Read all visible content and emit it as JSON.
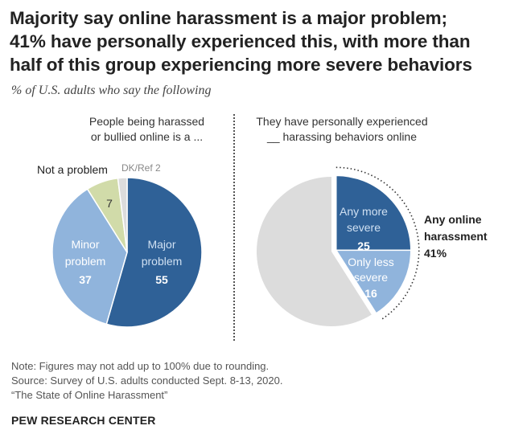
{
  "title_lines": [
    "Majority say online harassment is a major problem;",
    "41% have personally experienced this, with more than",
    "half of this group experiencing more severe behaviors"
  ],
  "subtitle": "% of U.S. adults who say the following",
  "left_heading": [
    "People being harassed",
    "or bullied online is a ..."
  ],
  "right_heading": [
    "They have personally experienced",
    "__ harassing behaviors online"
  ],
  "colors": {
    "dark_blue": "#2f6197",
    "light_blue": "#90b4dc",
    "olive": "#d1dba9",
    "grey": "#dcdcdc",
    "label_light": "#cfe0f2"
  },
  "chart_data": [
    {
      "type": "pie",
      "title": "People being harassed or bullied online is a ...",
      "slices": [
        {
          "name": "Major problem",
          "label_lines": [
            "Major",
            "problem"
          ],
          "value": 55
        },
        {
          "name": "Minor problem",
          "label_lines": [
            "Minor",
            "problem"
          ],
          "value": 37
        },
        {
          "name": "Not a problem",
          "label_lines": [
            "Not a problem"
          ],
          "value": 7
        },
        {
          "name": "DK/Ref",
          "label_lines": [
            "DK/Ref"
          ],
          "value": 2
        }
      ]
    },
    {
      "type": "pie",
      "title": "They have personally experienced __ harassing behaviors online",
      "slices": [
        {
          "name": "Any more severe",
          "label_lines": [
            "Any more",
            "severe"
          ],
          "value": 25
        },
        {
          "name": "Only less severe",
          "label_lines": [
            "Only less",
            "severe"
          ],
          "value": 16
        },
        {
          "name": "Other",
          "value": 59
        }
      ],
      "bracket_label": {
        "lines": [
          "Any online",
          "harassment"
        ],
        "value": "41%"
      }
    }
  ],
  "notes": [
    "Note: Figures may not add up to 100% due to rounding.",
    "Source: Survey of U.S. adults conducted Sept. 8-13, 2020.",
    "“The State of Online Harassment”"
  ],
  "brand": "PEW RESEARCH CENTER"
}
